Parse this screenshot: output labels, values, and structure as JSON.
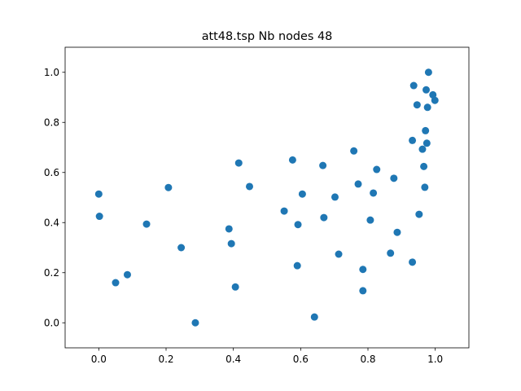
{
  "chart_data": {
    "type": "scatter",
    "title": "att48.tsp Nb nodes 48",
    "xlabel": "",
    "ylabel": "",
    "xlim": [
      -0.1,
      1.1
    ],
    "ylim": [
      -0.1,
      1.1
    ],
    "xticks": [
      0.0,
      0.2,
      0.4,
      0.6,
      0.8,
      1.0
    ],
    "yticks": [
      0.0,
      0.2,
      0.4,
      0.6,
      0.8,
      1.0
    ],
    "xtick_labels": [
      "0.0",
      "0.2",
      "0.4",
      "0.6",
      "0.8",
      "1.0"
    ],
    "ytick_labels": [
      "0.0",
      "0.2",
      "0.4",
      "0.6",
      "0.8",
      "1.0"
    ],
    "grid": false,
    "marker_color": "#1f77b4",
    "points": [
      [
        0.98,
        1.0
      ],
      [
        0.936,
        0.947
      ],
      [
        0.973,
        0.93
      ],
      [
        0.993,
        0.91
      ],
      [
        0.999,
        0.888
      ],
      [
        0.946,
        0.87
      ],
      [
        0.977,
        0.86
      ],
      [
        0.971,
        0.767
      ],
      [
        0.932,
        0.728
      ],
      [
        0.975,
        0.717
      ],
      [
        0.962,
        0.693
      ],
      [
        0.758,
        0.686
      ],
      [
        0.966,
        0.624
      ],
      [
        0.576,
        0.65
      ],
      [
        0.416,
        0.638
      ],
      [
        0.666,
        0.628
      ],
      [
        0.826,
        0.612
      ],
      [
        0.877,
        0.577
      ],
      [
        0.771,
        0.554
      ],
      [
        0.448,
        0.544
      ],
      [
        0.207,
        0.54
      ],
      [
        0.969,
        0.541
      ],
      [
        0.0,
        0.514
      ],
      [
        0.605,
        0.514
      ],
      [
        0.816,
        0.518
      ],
      [
        0.702,
        0.502
      ],
      [
        0.551,
        0.446
      ],
      [
        0.952,
        0.433
      ],
      [
        0.002,
        0.425
      ],
      [
        0.669,
        0.42
      ],
      [
        0.807,
        0.41
      ],
      [
        0.142,
        0.394
      ],
      [
        0.592,
        0.392
      ],
      [
        0.387,
        0.375
      ],
      [
        0.887,
        0.361
      ],
      [
        0.394,
        0.316
      ],
      [
        0.245,
        0.3
      ],
      [
        0.713,
        0.274
      ],
      [
        0.867,
        0.278
      ],
      [
        0.932,
        0.242
      ],
      [
        0.59,
        0.228
      ],
      [
        0.785,
        0.213
      ],
      [
        0.085,
        0.192
      ],
      [
        0.05,
        0.16
      ],
      [
        0.406,
        0.143
      ],
      [
        0.785,
        0.128
      ],
      [
        0.641,
        0.023
      ],
      [
        0.287,
        0.0
      ]
    ]
  }
}
